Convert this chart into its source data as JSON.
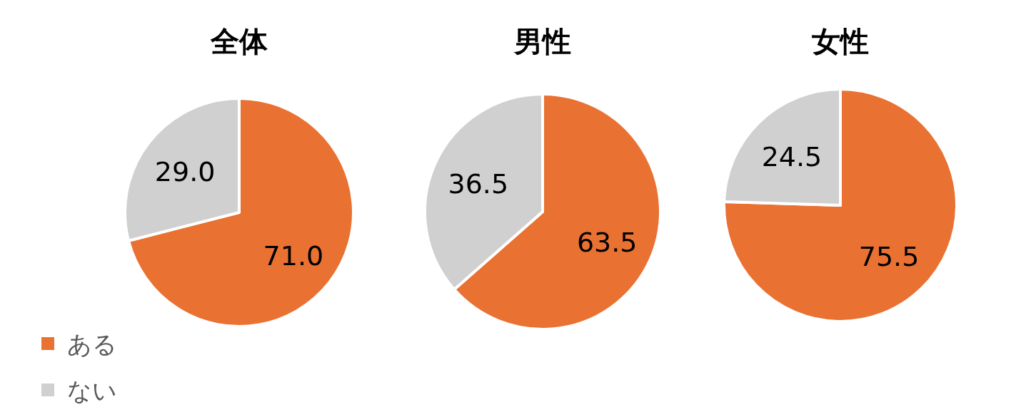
{
  "chart_data": [
    {
      "type": "pie",
      "title": "全体",
      "categories": [
        "ある",
        "ない"
      ],
      "values": [
        71.0,
        29.0
      ],
      "value_labels": [
        "71.0",
        "29.0"
      ],
      "colors": [
        "#e97132",
        "#d0d0d0"
      ],
      "legend": "bottom left"
    },
    {
      "type": "pie",
      "title": "男性",
      "categories": [
        null,
        null
      ],
      "values": [
        63.5,
        36.5
      ],
      "value_labels": [
        "63.5",
        "36.5"
      ],
      "colors": [
        "#e97132",
        "#d0d0d0"
      ]
    },
    {
      "type": "pie",
      "title": "女性",
      "categories": [
        null,
        null
      ],
      "values": [
        75.5,
        24.5
      ],
      "value_labels": [
        "75.5",
        "24.5"
      ],
      "colors": [
        "#e97132",
        "#d0d0d0"
      ]
    }
  ]
}
